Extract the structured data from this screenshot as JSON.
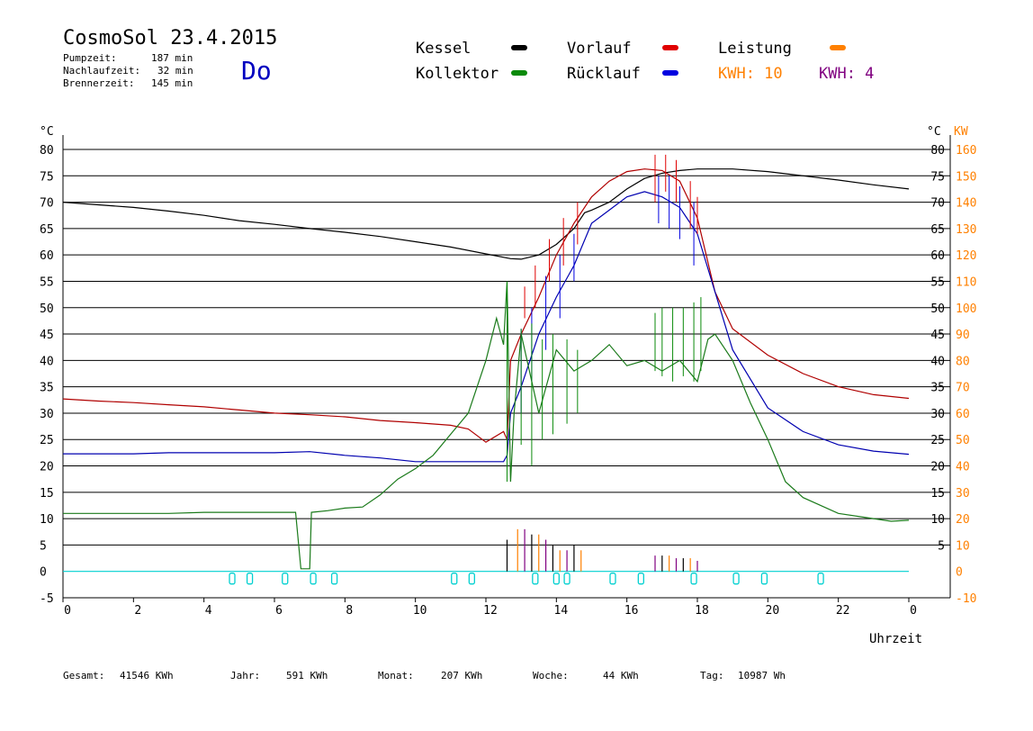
{
  "header": {
    "title": "CosmoSol 23.4.2015",
    "pump_label": "Pumpzeit:",
    "pump_value": "187 min",
    "after_label": "Nachlaufzeit:",
    "after_value": "32 min",
    "burner_label": "Brennerzeit:",
    "burner_value": "145 min",
    "weekday": "Do"
  },
  "legend": {
    "kessel": "Kessel",
    "vorlauf": "Vorlauf",
    "leistung": "Leistung",
    "kollektor": "Kollektor",
    "ruecklauf": "Rücklauf",
    "kwh1": "KWH: 10",
    "kwh2": "KWH: 4"
  },
  "axes": {
    "left_unit": "°C",
    "right_unit_c": "°C",
    "right_unit_kw": "KW",
    "x_label": "Uhrzeit"
  },
  "footer": {
    "gesamt_label": "Gesamt:",
    "gesamt_value": "41546 KWh",
    "jahr_label": "Jahr:",
    "jahr_value": "591 KWh",
    "monat_label": "Monat:",
    "monat_value": "207 KWh",
    "woche_label": "Woche:",
    "woche_value": "44 KWh",
    "tag_label": "Tag:",
    "tag_value": "10987 Wh"
  },
  "colors": {
    "kessel": "#000000",
    "vorlauf": "#e00000",
    "vorlauf_line": "#b00000",
    "ruecklauf": "#0000e0",
    "ruecklauf_line": "#0000b0",
    "kollektor": "#0a8a0a",
    "kollektor_line": "#1a7a1a",
    "leistung": "#ff8000",
    "kwh2": "#800080",
    "pump": "#00d0d0",
    "weekday": "#0000c0"
  },
  "chart_data": {
    "type": "line",
    "xlim": [
      0,
      24
    ],
    "ylim_left": [
      -5,
      80
    ],
    "ylim_right": [
      -10,
      160
    ],
    "x_ticks": [
      "0",
      "2",
      "4",
      "6",
      "8",
      "10",
      "12",
      "14",
      "16",
      "18",
      "20",
      "22",
      "0"
    ],
    "y_ticks_left": [
      "80",
      "75",
      "70",
      "65",
      "60",
      "55",
      "50",
      "45",
      "40",
      "35",
      "30",
      "25",
      "20",
      "15",
      "10",
      "5",
      "0",
      "-5"
    ],
    "y_ticks_right_c": [
      "80",
      "75",
      "70",
      "65",
      "60",
      "55",
      "50",
      "45",
      "40",
      "35",
      "30",
      "25",
      "20",
      "15",
      "10",
      "5"
    ],
    "y_ticks_right_kw": [
      "160",
      "150",
      "140",
      "130",
      "120",
      "110",
      "100",
      "90",
      "80",
      "70",
      "60",
      "50",
      "40",
      "30",
      "20",
      "10",
      "0",
      "-10"
    ],
    "series": [
      {
        "name": "Kessel",
        "color": "#000000",
        "points": [
          [
            0,
            70
          ],
          [
            1,
            69.5
          ],
          [
            2,
            69
          ],
          [
            3,
            68.3
          ],
          [
            4,
            67.5
          ],
          [
            5,
            66.5
          ],
          [
            6,
            65.8
          ],
          [
            7,
            65
          ],
          [
            8,
            64.3
          ],
          [
            9,
            63.5
          ],
          [
            10,
            62.5
          ],
          [
            11,
            61.5
          ],
          [
            12,
            60.2
          ],
          [
            12.7,
            59.3
          ],
          [
            13,
            59.2
          ],
          [
            13.5,
            60
          ],
          [
            14,
            62
          ],
          [
            14.5,
            65
          ],
          [
            14.8,
            68
          ],
          [
            15,
            68.5
          ],
          [
            15.5,
            70
          ],
          [
            16,
            72.5
          ],
          [
            16.5,
            74.5
          ],
          [
            17,
            75.5
          ],
          [
            17.5,
            76
          ],
          [
            18,
            76.3
          ],
          [
            18.5,
            76.3
          ],
          [
            19,
            76.3
          ],
          [
            20,
            75.8
          ],
          [
            21,
            75
          ],
          [
            22,
            74.2
          ],
          [
            23,
            73.3
          ],
          [
            24,
            72.5
          ]
        ]
      },
      {
        "name": "Vorlauf",
        "color": "#b00000",
        "points": [
          [
            0,
            32.7
          ],
          [
            1,
            32.3
          ],
          [
            2,
            32
          ],
          [
            3,
            31.6
          ],
          [
            4,
            31.2
          ],
          [
            5,
            30.6
          ],
          [
            6,
            30
          ],
          [
            7,
            29.7
          ],
          [
            8,
            29.3
          ],
          [
            9,
            28.6
          ],
          [
            10,
            28.2
          ],
          [
            11,
            27.7
          ],
          [
            11.5,
            27
          ],
          [
            12,
            24.5
          ],
          [
            12.5,
            26.5
          ],
          [
            12.6,
            25
          ],
          [
            12.7,
            40
          ],
          [
            13,
            45
          ],
          [
            13.5,
            52
          ],
          [
            14,
            60
          ],
          [
            14.5,
            66
          ],
          [
            15,
            71
          ],
          [
            15.5,
            74
          ],
          [
            16,
            75.8
          ],
          [
            16.5,
            76.3
          ],
          [
            17,
            76
          ],
          [
            17.5,
            74
          ],
          [
            18,
            67
          ],
          [
            18.5,
            53
          ],
          [
            19,
            46
          ],
          [
            20,
            41
          ],
          [
            21,
            37.5
          ],
          [
            22,
            35
          ],
          [
            23,
            33.5
          ],
          [
            24,
            32.8
          ]
        ]
      },
      {
        "name": "Rücklauf",
        "color": "#0000b0",
        "points": [
          [
            0,
            22.3
          ],
          [
            1,
            22.3
          ],
          [
            2,
            22.3
          ],
          [
            3,
            22.5
          ],
          [
            4,
            22.5
          ],
          [
            5,
            22.5
          ],
          [
            6,
            22.5
          ],
          [
            7,
            22.7
          ],
          [
            8,
            22
          ],
          [
            9,
            21.5
          ],
          [
            10,
            20.8
          ],
          [
            11,
            20.8
          ],
          [
            12,
            20.8
          ],
          [
            12.5,
            20.8
          ],
          [
            12.6,
            22
          ],
          [
            12.7,
            30
          ],
          [
            13,
            35
          ],
          [
            13.5,
            45
          ],
          [
            14,
            52
          ],
          [
            14.5,
            58
          ],
          [
            15,
            66
          ],
          [
            15.5,
            68.5
          ],
          [
            16,
            71
          ],
          [
            16.5,
            72
          ],
          [
            17,
            71
          ],
          [
            17.5,
            69
          ],
          [
            18,
            64
          ],
          [
            18.5,
            53
          ],
          [
            19,
            42
          ],
          [
            20,
            31
          ],
          [
            21,
            26.5
          ],
          [
            22,
            24
          ],
          [
            23,
            22.8
          ],
          [
            24,
            22.2
          ]
        ]
      },
      {
        "name": "Kollektor",
        "color": "#1a7a1a",
        "points": [
          [
            0,
            11
          ],
          [
            1,
            11
          ],
          [
            2,
            11
          ],
          [
            3,
            11
          ],
          [
            4,
            11.2
          ],
          [
            5,
            11.2
          ],
          [
            6,
            11.2
          ],
          [
            6.6,
            11.2
          ],
          [
            6.75,
            0.5
          ],
          [
            7.0,
            0.5
          ],
          [
            7.05,
            11.2
          ],
          [
            7.5,
            11.5
          ],
          [
            8,
            12
          ],
          [
            8.5,
            12.2
          ],
          [
            9,
            14.5
          ],
          [
            9.5,
            17.5
          ],
          [
            10,
            19.5
          ],
          [
            10.5,
            22
          ],
          [
            11,
            26
          ],
          [
            11.5,
            30
          ],
          [
            12,
            40
          ],
          [
            12.3,
            48
          ],
          [
            12.5,
            43
          ],
          [
            12.6,
            55
          ],
          [
            12.7,
            17
          ],
          [
            12.8,
            30
          ],
          [
            13,
            45
          ],
          [
            13.5,
            30
          ],
          [
            14,
            42
          ],
          [
            14.5,
            38
          ],
          [
            15,
            40
          ],
          [
            15.5,
            43
          ],
          [
            16,
            39
          ],
          [
            16.5,
            40
          ],
          [
            17,
            38
          ],
          [
            17.5,
            40
          ],
          [
            18,
            36
          ],
          [
            18.3,
            44
          ],
          [
            18.5,
            45
          ],
          [
            19,
            40
          ],
          [
            19.5,
            32
          ],
          [
            20,
            25
          ],
          [
            20.5,
            17
          ],
          [
            21,
            14
          ],
          [
            22,
            11
          ],
          [
            23,
            10
          ],
          [
            23.5,
            9.5
          ],
          [
            24,
            9.7
          ]
        ]
      }
    ],
    "spikes": {
      "vorlauf": [
        [
          13.1,
          48,
          54
        ],
        [
          13.4,
          50,
          58
        ],
        [
          13.8,
          55,
          63
        ],
        [
          14.2,
          58,
          67
        ],
        [
          14.6,
          62,
          70
        ],
        [
          16.8,
          70,
          79
        ],
        [
          17.1,
          72,
          79
        ],
        [
          17.4,
          70,
          78
        ],
        [
          17.8,
          65,
          74
        ],
        [
          18.0,
          64,
          71
        ]
      ],
      "ruecklauf": [
        [
          13.0,
          30,
          46
        ],
        [
          13.3,
          36,
          50
        ],
        [
          13.7,
          42,
          56
        ],
        [
          14.1,
          48,
          60
        ],
        [
          14.5,
          55,
          64
        ],
        [
          16.9,
          66,
          75
        ],
        [
          17.2,
          65,
          75
        ],
        [
          17.5,
          63,
          73
        ],
        [
          17.9,
          58,
          70
        ]
      ],
      "kollektor": [
        [
          12.6,
          17,
          55
        ],
        [
          13.0,
          24,
          46
        ],
        [
          13.3,
          20,
          47
        ],
        [
          13.6,
          25,
          44
        ],
        [
          13.9,
          26,
          45
        ],
        [
          14.3,
          28,
          44
        ],
        [
          14.6,
          30,
          42
        ],
        [
          16.8,
          38,
          49
        ],
        [
          17.0,
          37,
          50
        ],
        [
          17.3,
          36,
          50
        ],
        [
          17.6,
          37,
          50
        ],
        [
          17.9,
          36,
          51
        ],
        [
          18.1,
          38,
          52
        ]
      ]
    },
    "power_bars": [
      [
        12.6,
        6
      ],
      [
        12.9,
        8
      ],
      [
        13.1,
        8
      ],
      [
        13.3,
        7
      ],
      [
        13.5,
        7
      ],
      [
        13.7,
        6
      ],
      [
        13.9,
        5
      ],
      [
        14.1,
        4
      ],
      [
        14.3,
        4
      ],
      [
        14.5,
        5
      ],
      [
        14.7,
        4
      ],
      [
        16.8,
        3
      ],
      [
        17.0,
        3
      ],
      [
        17.2,
        3
      ],
      [
        17.4,
        2.5
      ],
      [
        17.6,
        2.5
      ],
      [
        17.8,
        2.5
      ],
      [
        18.0,
        2
      ]
    ],
    "pump_markers": [
      4.8,
      5.3,
      6.3,
      7.1,
      7.7,
      11.1,
      11.6,
      13.4,
      14.0,
      14.3,
      15.6,
      16.4,
      17.9,
      19.1,
      19.9,
      21.5
    ]
  }
}
